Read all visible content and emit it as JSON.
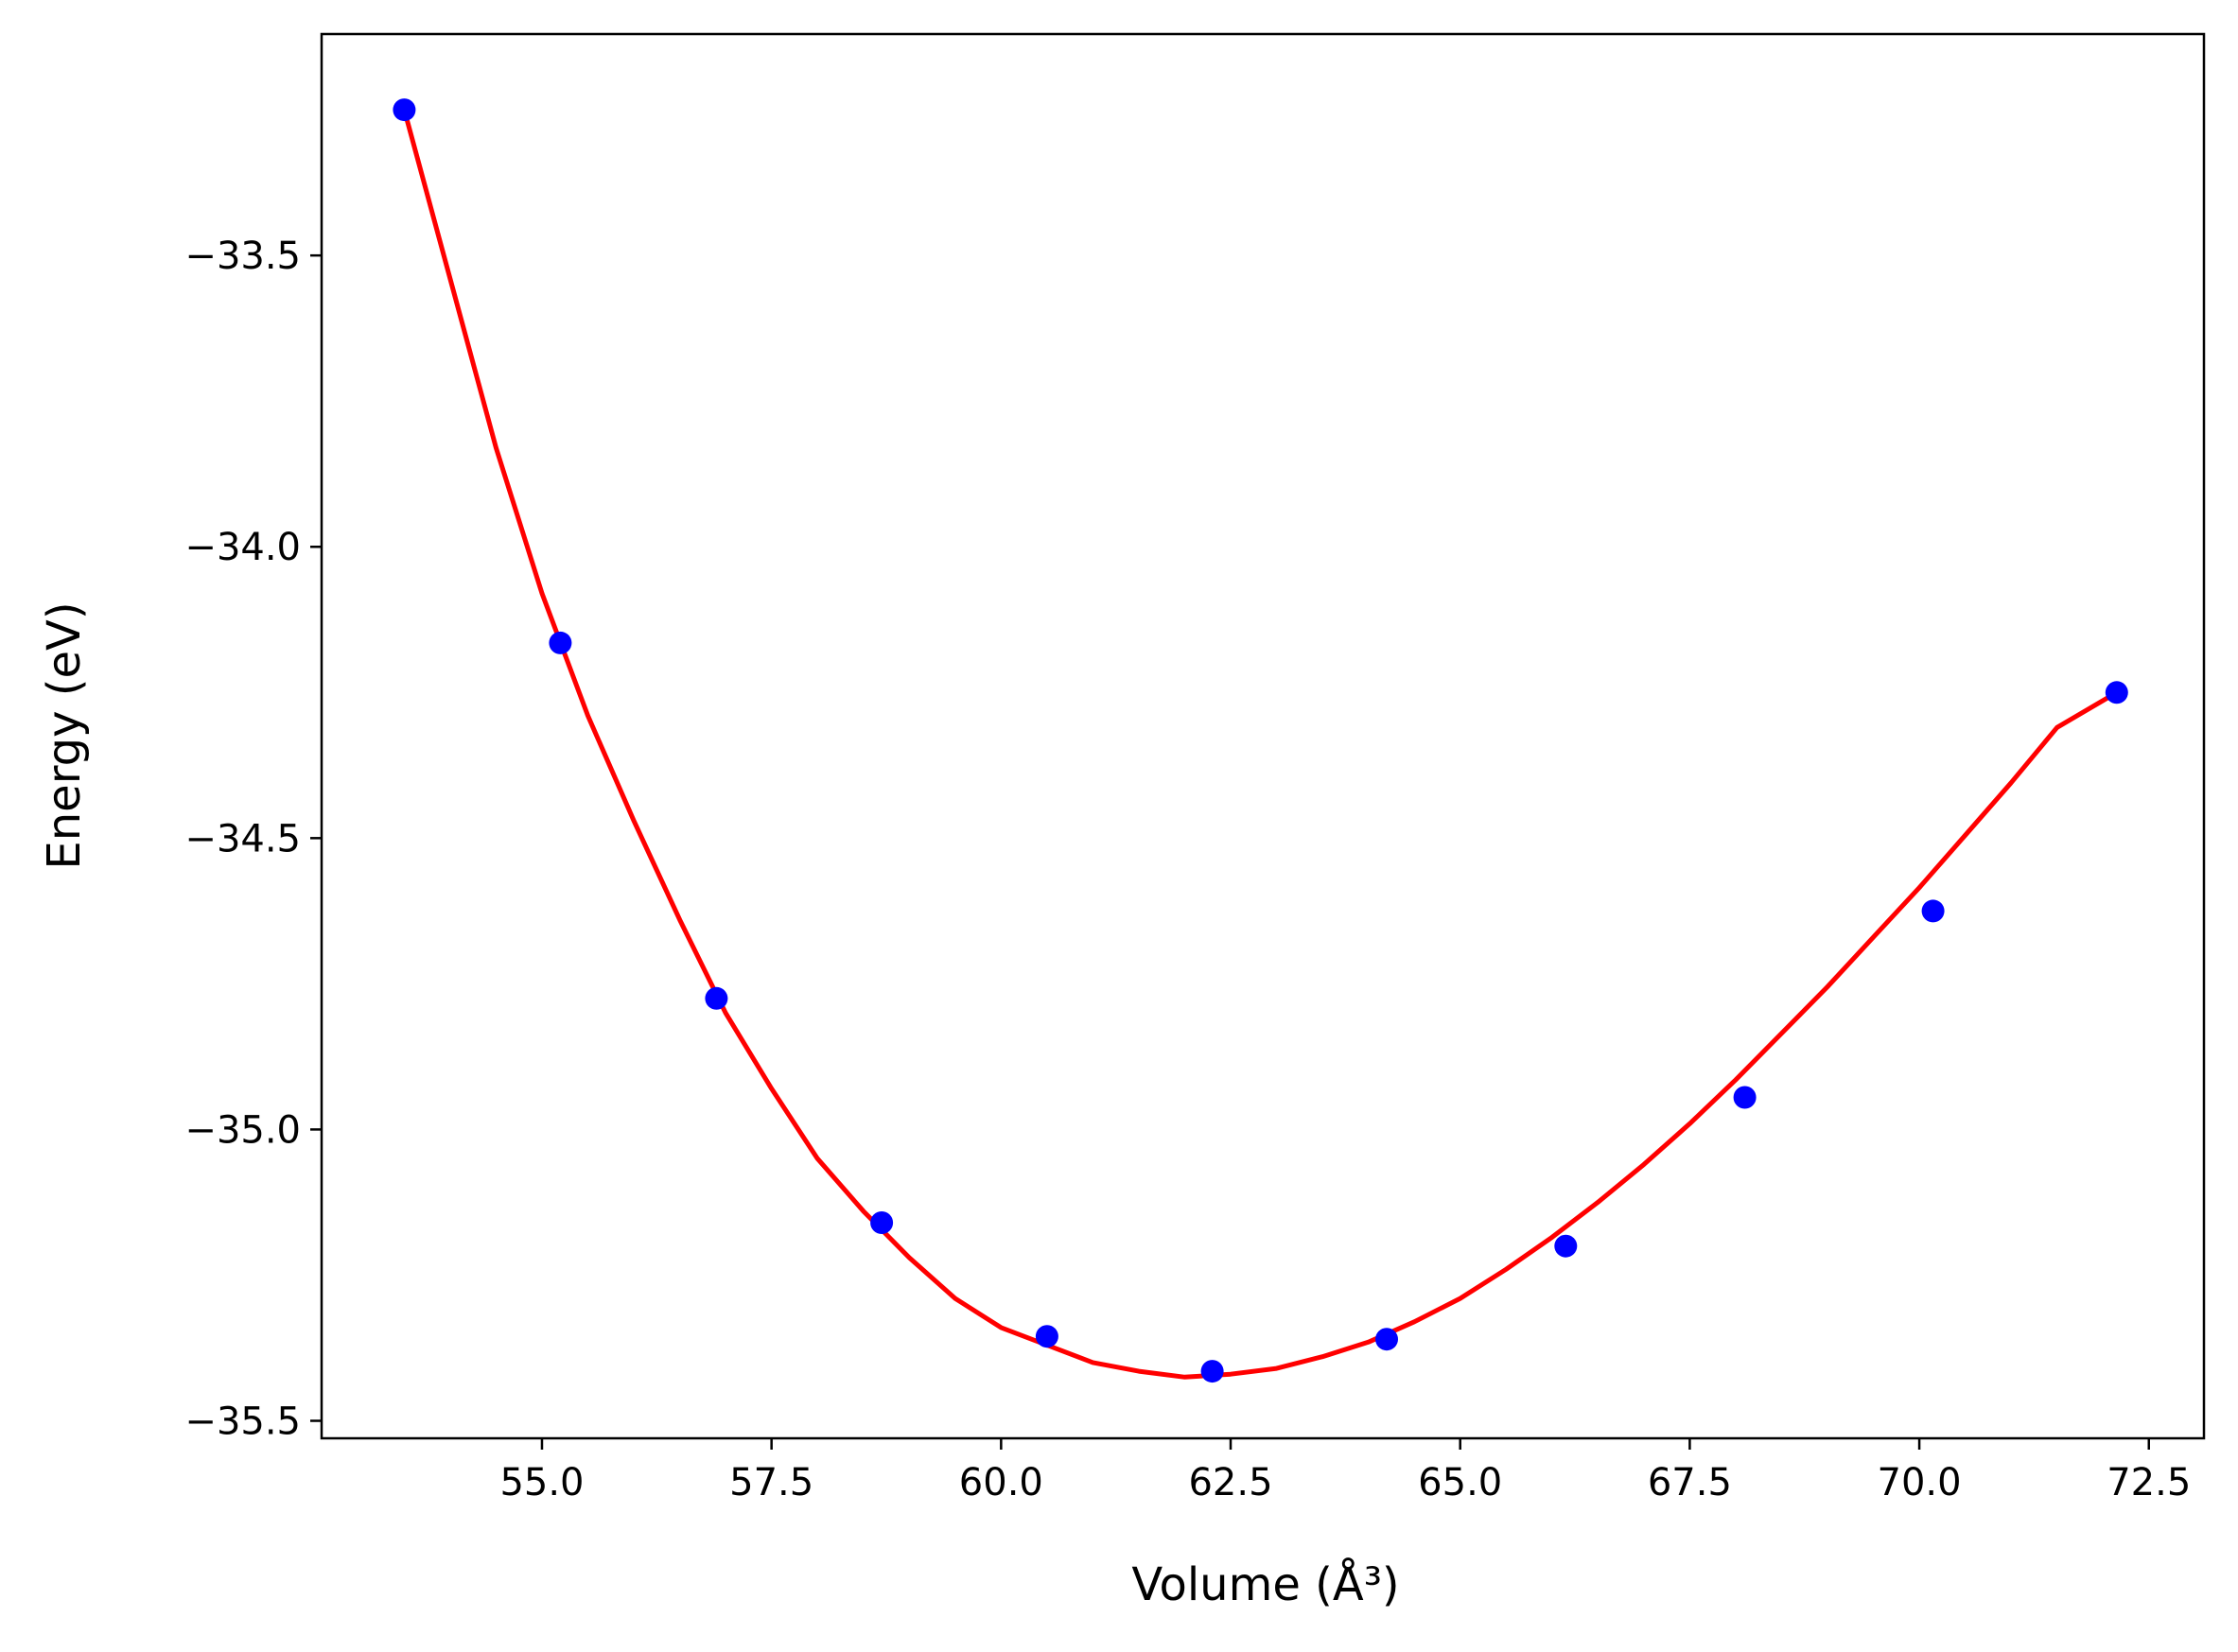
{
  "chart_data": {
    "type": "scatter",
    "xlabel": "Volume (Å³)",
    "ylabel": "Energy (eV)",
    "xlim": [
      52.6,
      73.1
    ],
    "ylim": [
      -35.53,
      -33.12
    ],
    "xticks": [
      55.0,
      57.5,
      60.0,
      62.5,
      65.0,
      67.5,
      70.0,
      72.5
    ],
    "xtick_labels": [
      "55.0",
      "57.5",
      "60.0",
      "62.5",
      "65.0",
      "67.5",
      "70.0",
      "72.5"
    ],
    "yticks": [
      -33.5,
      -34.0,
      -34.5,
      -35.0,
      -35.5
    ],
    "ytick_labels": [
      "−33.5",
      "−34.0",
      "−34.5",
      "−35.0",
      "−35.5"
    ],
    "grid": false,
    "series": [
      {
        "kind": "points",
        "color": "#0000ff",
        "x": [
          53.5,
          55.2,
          56.9,
          58.7,
          60.5,
          62.3,
          64.2,
          66.15,
          68.1,
          70.15,
          72.15
        ],
        "y": [
          -33.25,
          -34.165,
          -34.775,
          -35.16,
          -35.355,
          -35.415,
          -35.36,
          -35.2,
          -34.945,
          -34.625,
          -34.25
        ]
      },
      {
        "kind": "fit-line",
        "color": "#ff0000",
        "x": [
          53.5,
          54.0,
          54.5,
          55.0,
          55.5,
          56.0,
          56.5,
          57.0,
          57.5,
          58.0,
          58.5,
          59.0,
          59.5,
          60.0,
          60.5,
          61.0,
          61.5,
          62.0,
          62.5,
          63.0,
          63.5,
          64.0,
          64.5,
          65.0,
          65.5,
          66.0,
          66.5,
          67.0,
          67.5,
          68.0,
          68.5,
          69.0,
          69.5,
          70.0,
          70.5,
          71.0,
          71.5,
          72.15
        ],
        "y": [
          -33.25,
          -33.54,
          -33.83,
          -34.08,
          -34.29,
          -34.47,
          -34.64,
          -34.8,
          -34.93,
          -35.05,
          -35.14,
          -35.22,
          -35.29,
          -35.34,
          -35.37,
          -35.4,
          -35.415,
          -35.425,
          -35.42,
          -35.41,
          -35.39,
          -35.365,
          -35.33,
          -35.29,
          -35.24,
          -35.185,
          -35.125,
          -35.06,
          -34.99,
          -34.915,
          -34.835,
          -34.755,
          -34.67,
          -34.585,
          -34.495,
          -34.405,
          -34.31,
          -34.25
        ]
      }
    ]
  }
}
